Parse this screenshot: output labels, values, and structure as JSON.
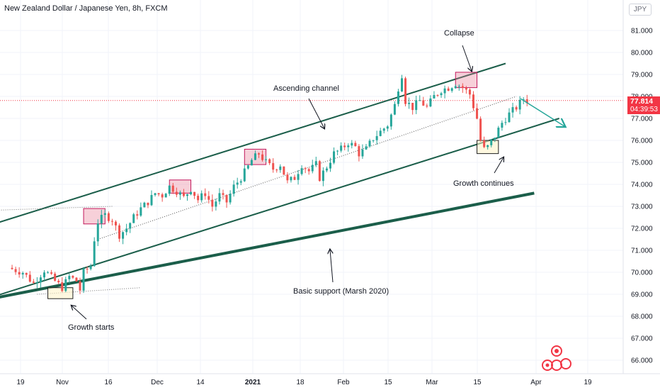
{
  "title": "New Zealand Dollar / Japanese Yen, 8h, FXCM",
  "currency_badge": "JPY",
  "price_tag": {
    "price": "77.814",
    "countdown": "04:39:53"
  },
  "annotations": {
    "collapse": "Collapse",
    "ascending_channel": "Ascending channel",
    "growth_continues": "Growth continues",
    "basic_support": "Basic support (Marsh 2020)",
    "growth_starts": "Growth starts"
  },
  "colors": {
    "up": "#26a69a",
    "down": "#ef5350",
    "line": "#1b5e4a",
    "box_fill": "#f4c7cf",
    "box_stroke": "#c2185b",
    "tag": "#f23645"
  },
  "chart_data": {
    "type": "candlestick",
    "title": "New Zealand Dollar / Japanese Yen, 8h, FXCM",
    "y_ticks": [
      "81.000",
      "80.000",
      "79.000",
      "78.000",
      "77.000",
      "76.000",
      "75.000",
      "74.000",
      "73.000",
      "72.000",
      "71.000",
      "70.000",
      "69.000",
      "68.000",
      "67.000",
      "66.000"
    ],
    "ylim": [
      65.8,
      82.0
    ],
    "x_ticks": [
      "19",
      "Nov",
      "16",
      "Dec",
      "14",
      "2021",
      "18",
      "Feb",
      "15",
      "Mar",
      "15",
      "Apr",
      "19"
    ],
    "last_price": 77.814,
    "price_path": [
      [
        0,
        70.2
      ],
      [
        4,
        70.0
      ],
      [
        7,
        69.5
      ],
      [
        10,
        70.1
      ],
      [
        13,
        69.6
      ],
      [
        15,
        69.3
      ],
      [
        17,
        69.8
      ],
      [
        19,
        69.6
      ],
      [
        20,
        69.2
      ],
      [
        21,
        70.0
      ],
      [
        23,
        70.3
      ],
      [
        24,
        71.5
      ],
      [
        25,
        72.3
      ],
      [
        27,
        72.6
      ],
      [
        29,
        72.4
      ],
      [
        31,
        71.7
      ],
      [
        33,
        72.0
      ],
      [
        35,
        72.5
      ],
      [
        37,
        72.9
      ],
      [
        39,
        73.2
      ],
      [
        41,
        73.6
      ],
      [
        43,
        73.5
      ],
      [
        45,
        73.9
      ],
      [
        47,
        73.7
      ],
      [
        49,
        73.4
      ],
      [
        51,
        73.8
      ],
      [
        53,
        73.3
      ],
      [
        55,
        73.6
      ],
      [
        57,
        73.0
      ],
      [
        59,
        73.5
      ],
      [
        61,
        73.2
      ],
      [
        63,
        73.9
      ],
      [
        65,
        74.3
      ],
      [
        67,
        74.8
      ],
      [
        68,
        75.1
      ],
      [
        70,
        75.4
      ],
      [
        72,
        75.0
      ],
      [
        74,
        74.7
      ],
      [
        76,
        74.9
      ],
      [
        78,
        74.1
      ],
      [
        80,
        74.3
      ],
      [
        82,
        74.9
      ],
      [
        84,
        74.6
      ],
      [
        86,
        74.9
      ],
      [
        87,
        74.3
      ],
      [
        89,
        74.8
      ],
      [
        91,
        75.4
      ],
      [
        93,
        75.6
      ],
      [
        95,
        75.9
      ],
      [
        97,
        75.7
      ],
      [
        98,
        75.4
      ],
      [
        100,
        75.6
      ],
      [
        102,
        76.1
      ],
      [
        104,
        76.4
      ],
      [
        106,
        76.7
      ],
      [
        108,
        77.6
      ],
      [
        109,
        78.4
      ],
      [
        110,
        79.0
      ],
      [
        111,
        77.8
      ],
      [
        113,
        77.5
      ],
      [
        115,
        77.8
      ],
      [
        117,
        77.5
      ],
      [
        119,
        78.0
      ],
      [
        121,
        78.3
      ],
      [
        123,
        78.4
      ],
      [
        125,
        78.6
      ],
      [
        127,
        78.4
      ],
      [
        129,
        78.1
      ],
      [
        131,
        77.0
      ],
      [
        132,
        76.0
      ],
      [
        133,
        75.6
      ],
      [
        134,
        75.7
      ],
      [
        136,
        76.2
      ],
      [
        138,
        76.8
      ],
      [
        140,
        77.2
      ],
      [
        142,
        77.5
      ],
      [
        144,
        77.9
      ],
      [
        145,
        77.81
      ]
    ],
    "channel_upper": [
      [
        -8,
        72.0
      ],
      [
        139,
        79.5
      ]
    ],
    "channel_lower": [
      [
        -8,
        68.7
      ],
      [
        154,
        77.0
      ]
    ],
    "basic_support": [
      [
        -8,
        68.7
      ],
      [
        147,
        73.6
      ]
    ],
    "dotted_midline": [
      [
        25,
        71.5
      ],
      [
        142,
        78.0
      ]
    ],
    "dotted_tail": [
      [
        -8,
        72.8
      ],
      [
        29,
        73.0
      ]
    ],
    "dotted_flat": [
      [
        8,
        69.0
      ],
      [
        37,
        69.3
      ]
    ],
    "arrow_forecast": [
      [
        142,
        77.9
      ],
      [
        148,
        76.7
      ]
    ],
    "highlight_boxes": [
      {
        "t0": 21,
        "t1": 27,
        "lo": 72.2,
        "hi": 72.9,
        "style": "pink"
      },
      {
        "t0": 45,
        "t1": 51,
        "lo": 73.6,
        "hi": 74.2,
        "style": "pink"
      },
      {
        "t0": 66,
        "t1": 72,
        "lo": 74.9,
        "hi": 75.6,
        "style": "pink"
      },
      {
        "t0": 125,
        "t1": 131,
        "lo": 78.4,
        "hi": 79.1,
        "style": "pink"
      },
      {
        "t0": 11,
        "t1": 18,
        "lo": 68.8,
        "hi": 69.3,
        "style": "cream"
      },
      {
        "t0": 131,
        "t1": 137,
        "lo": 75.4,
        "hi": 76.0,
        "style": "cream"
      }
    ]
  },
  "watermark": "TV"
}
